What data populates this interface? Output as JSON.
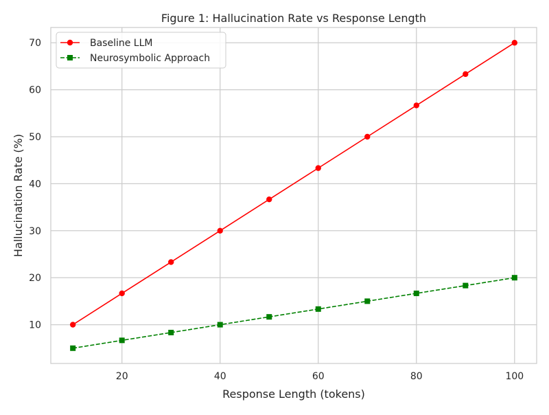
{
  "chart_data": {
    "type": "line",
    "title": "Figure 1: Hallucination Rate vs Response Length",
    "xlabel": "Response Length (tokens)",
    "ylabel": "Hallucination Rate (%)",
    "x": [
      10,
      20,
      30,
      40,
      50,
      60,
      70,
      80,
      90,
      100
    ],
    "xlim": [
      5.5,
      104.5
    ],
    "ylim": [
      1.75,
      73.25
    ],
    "xticks": [
      20,
      40,
      60,
      80,
      100
    ],
    "yticks": [
      10,
      20,
      30,
      40,
      50,
      60,
      70
    ],
    "grid": true,
    "legend_position": "top-left",
    "series": [
      {
        "name": "Baseline LLM",
        "color": "#ff0000",
        "marker": "circle",
        "linestyle": "solid",
        "values": [
          10,
          16.67,
          23.33,
          30,
          36.67,
          43.33,
          50,
          56.67,
          63.33,
          70
        ]
      },
      {
        "name": "Neurosymbolic Approach",
        "color": "#008000",
        "marker": "square",
        "linestyle": "dashed",
        "values": [
          5,
          6.67,
          8.33,
          10,
          11.67,
          13.33,
          15,
          16.67,
          18.33,
          20
        ]
      }
    ]
  }
}
